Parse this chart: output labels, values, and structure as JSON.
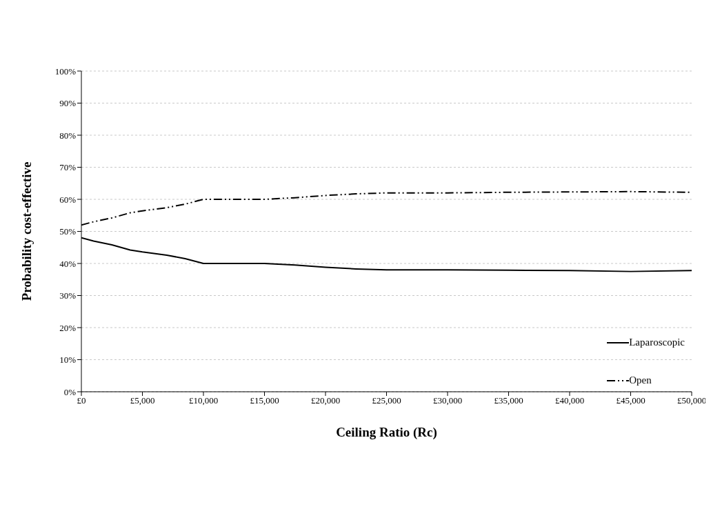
{
  "chart_data": {
    "type": "line",
    "xlabel": "Ceiling Ratio (Rc)",
    "ylabel": "Probability cost-effective",
    "x": [
      0,
      1000,
      2500,
      4000,
      5000,
      7000,
      8500,
      10000,
      12500,
      15000,
      17500,
      20000,
      22500,
      25000,
      30000,
      35000,
      40000,
      45000,
      50000
    ],
    "series": [
      {
        "name": "Laparoscopic",
        "color": "#000000",
        "line_style": "solid",
        "values": [
          48,
          47,
          45.8,
          44.2,
          43.6,
          42.6,
          41.5,
          40,
          40,
          40,
          39.5,
          38.8,
          38.3,
          38,
          38,
          37.9,
          37.8,
          37.5,
          37.8
        ]
      },
      {
        "name": "Open",
        "color": "#000000",
        "line_style": "dashed",
        "values": [
          52,
          53,
          54.2,
          55.8,
          56.4,
          57.4,
          58.5,
          60,
          60,
          60,
          60.5,
          61.2,
          61.7,
          62,
          62,
          62.2,
          62.3,
          62.4,
          62.2
        ]
      }
    ],
    "xlim": [
      0,
      50000
    ],
    "ylim": [
      0,
      100
    ],
    "xticks": [
      {
        "value": 0,
        "label": "£0"
      },
      {
        "value": 5000,
        "label": "£5,000"
      },
      {
        "value": 10000,
        "label": "£10,000"
      },
      {
        "value": 15000,
        "label": "£15,000"
      },
      {
        "value": 20000,
        "label": "£20,000"
      },
      {
        "value": 25000,
        "label": "£25,000"
      },
      {
        "value": 30000,
        "label": "£30,000"
      },
      {
        "value": 35000,
        "label": "£35,000"
      },
      {
        "value": 40000,
        "label": "£40,000"
      },
      {
        "value": 45000,
        "label": "£45,000"
      },
      {
        "value": 50000,
        "label": "£50,000"
      }
    ],
    "yticks": [
      {
        "value": 0,
        "label": "0%"
      },
      {
        "value": 10,
        "label": "10%"
      },
      {
        "value": 20,
        "label": "20%"
      },
      {
        "value": 30,
        "label": "30%"
      },
      {
        "value": 40,
        "label": "40%"
      },
      {
        "value": 50,
        "label": "50%"
      },
      {
        "value": 60,
        "label": "60%"
      },
      {
        "value": 70,
        "label": "70%"
      },
      {
        "value": 80,
        "label": "80%"
      },
      {
        "value": 90,
        "label": "90%"
      },
      {
        "value": 100,
        "label": "100%"
      }
    ],
    "grid": "y",
    "legend": "right",
    "marker": "none"
  }
}
